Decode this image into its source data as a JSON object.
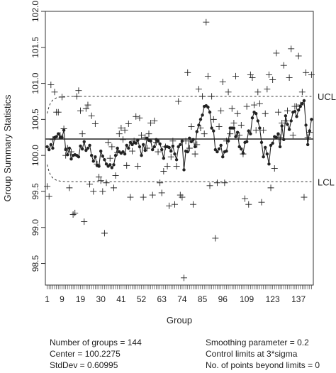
{
  "chart_data": {
    "type": "scatter",
    "subtype": "EWMA control chart",
    "title": "",
    "xlabel": "Group",
    "ylabel": "Group Summary Statistics",
    "xlim": [
      0,
      145
    ],
    "ylim": [
      98.2,
      102.0
    ],
    "y_ticks": [
      "98.5",
      "99.0",
      "99.5",
      "100.0",
      "100.5",
      "101.0",
      "101.5",
      "102.0"
    ],
    "x_tick_labels": [
      "1",
      "9",
      "19",
      "30",
      "41",
      "52",
      "63",
      "74",
      "85",
      "96",
      "109",
      "123",
      "137"
    ],
    "center_line": 100.2275,
    "limit_labels": {
      "ucl": "UCL",
      "lcl": "LCL"
    },
    "ucl_steady": 100.82,
    "lcl_steady": 99.63,
    "colors": {
      "points": "#222222",
      "lines": "#222222",
      "axes": "#333333"
    },
    "summary_plus": [
      99.57,
      99.43,
      100.98,
      100.22,
      100.88,
      100.6,
      100.6,
      100.28,
      100.81,
      100.37,
      100.0,
      100.1,
      99.55,
      100.05,
      99.18,
      99.2,
      100.82,
      100.9,
      100.62,
      100.3,
      99.08,
      100.65,
      100.7,
      99.6,
      100.55,
      99.5,
      100.44,
      99.88,
      99.7,
      99.65,
      99.5,
      98.92,
      99.62,
      100.18,
      99.96,
      100.12,
      99.55,
      99.72,
      100.04,
      100.3,
      100.38,
      100.22,
      100.35,
      99.86,
      100.44,
      99.42,
      100.06,
      100.2,
      100.54,
      99.85,
      100.52,
      100.28,
      99.42,
      100.25,
      100.1,
      100.3,
      100.45,
      99.45,
      100.48,
      100.18,
      100.05,
      99.62,
      99.48,
      99.78,
      100.12,
      99.85,
      99.3,
      99.98,
      100.2,
      99.32,
      99.85,
      100.75,
      99.45,
      99.42,
      98.3,
      100.2,
      101.15,
      100.1,
      100.4,
      99.32,
      100.02,
      100.15,
      100.92,
      100.38,
      100.82,
      100.3,
      101.85,
      101.1,
      99.58,
      100.82,
      100.5,
      98.85,
      99.62,
      100.4,
      100.62,
      101.02,
      99.62,
      100.2,
      100.88,
      100.3,
      100.65,
      100.45,
      101.1,
      100.58,
      100.28,
      100.42,
      100.02,
      99.4,
      100.68,
      99.32,
      101.12,
      101.08,
      100.7,
      100.35,
      100.88,
      100.72,
      99.35,
      100.35,
      100.58,
      100.92,
      101.12,
      99.55,
      101.05,
      99.82,
      101.42,
      100.6,
      100.25,
      100.45,
      101.25,
      100.48,
      100.62,
      101.08,
      101.48,
      100.28,
      100.68,
      100.68,
      101.38,
      100.7,
      100.88,
      99.42,
      101.15,
      100.25,
      100.32,
      101.12
    ],
    "ewma_line": [
      100.12,
      100.08,
      100.15,
      100.1,
      100.25,
      100.26,
      100.3,
      100.25,
      100.25,
      100.35,
      100.08,
      100.01,
      100.1,
      99.95,
      100.0,
      100.01,
      100.0,
      99.98,
      100.13,
      100.09,
      100.19,
      100.07,
      100.1,
      100.14,
      100.0,
      99.92,
      99.98,
      99.86,
      99.85,
      100.06,
      99.99,
      99.94,
      99.88,
      99.85,
      99.87,
      99.83,
      99.87,
      100.0,
      100.1,
      100.05,
      100.03,
      100.05,
      100.02,
      100.14,
      100.1,
      100.18,
      100.15,
      100.18,
      100.17,
      100.21,
      100.12,
      100.0,
      100.15,
      100.07,
      100.24,
      100.21,
      100.2,
      100.08,
      100.12,
      100.22,
      100.2,
      100.16,
      100.08,
      99.96,
      100.12,
      100.12,
      100.11,
      100.06,
      100.13,
      100.02,
      99.94,
      100.12,
      100.15,
      100.2,
      99.8,
      100.06,
      100.05,
      100.24,
      100.19,
      100.22,
      100.12,
      100.33,
      100.42,
      100.5,
      100.56,
      100.68,
      100.69,
      100.67,
      100.6,
      100.38,
      100.34,
      100.08,
      100.05,
      100.09,
      100.14,
      99.98,
      100.05,
      100.06,
      100.2,
      100.38,
      100.38,
      100.38,
      100.26,
      100.32,
      100.12,
      100.09,
      100.03,
      100.18,
      100.19,
      100.34,
      100.3,
      100.52,
      100.6,
      100.58,
      100.48,
      100.38,
      100.18,
      99.98,
      100.11,
      100.02,
      99.88,
      100.14,
      100.17,
      100.26,
      100.25,
      100.3,
      100.12,
      100.41,
      100.22,
      100.55,
      100.43,
      100.36,
      100.48,
      100.6,
      100.61,
      100.54,
      100.63,
      100.68,
      100.72,
      100.76,
      100.42,
      100.15,
      100.34,
      100.5
    ],
    "stats": {
      "n_groups": "Number of groups = 144",
      "center": "Center = 100.2275",
      "stddev": "StdDev = 0.60995",
      "smoothing": "Smoothing parameter =  0.2",
      "control_limits": "Control limits at 3*sigma",
      "beyond_limits": "No. of points beyond limits = 0"
    }
  }
}
